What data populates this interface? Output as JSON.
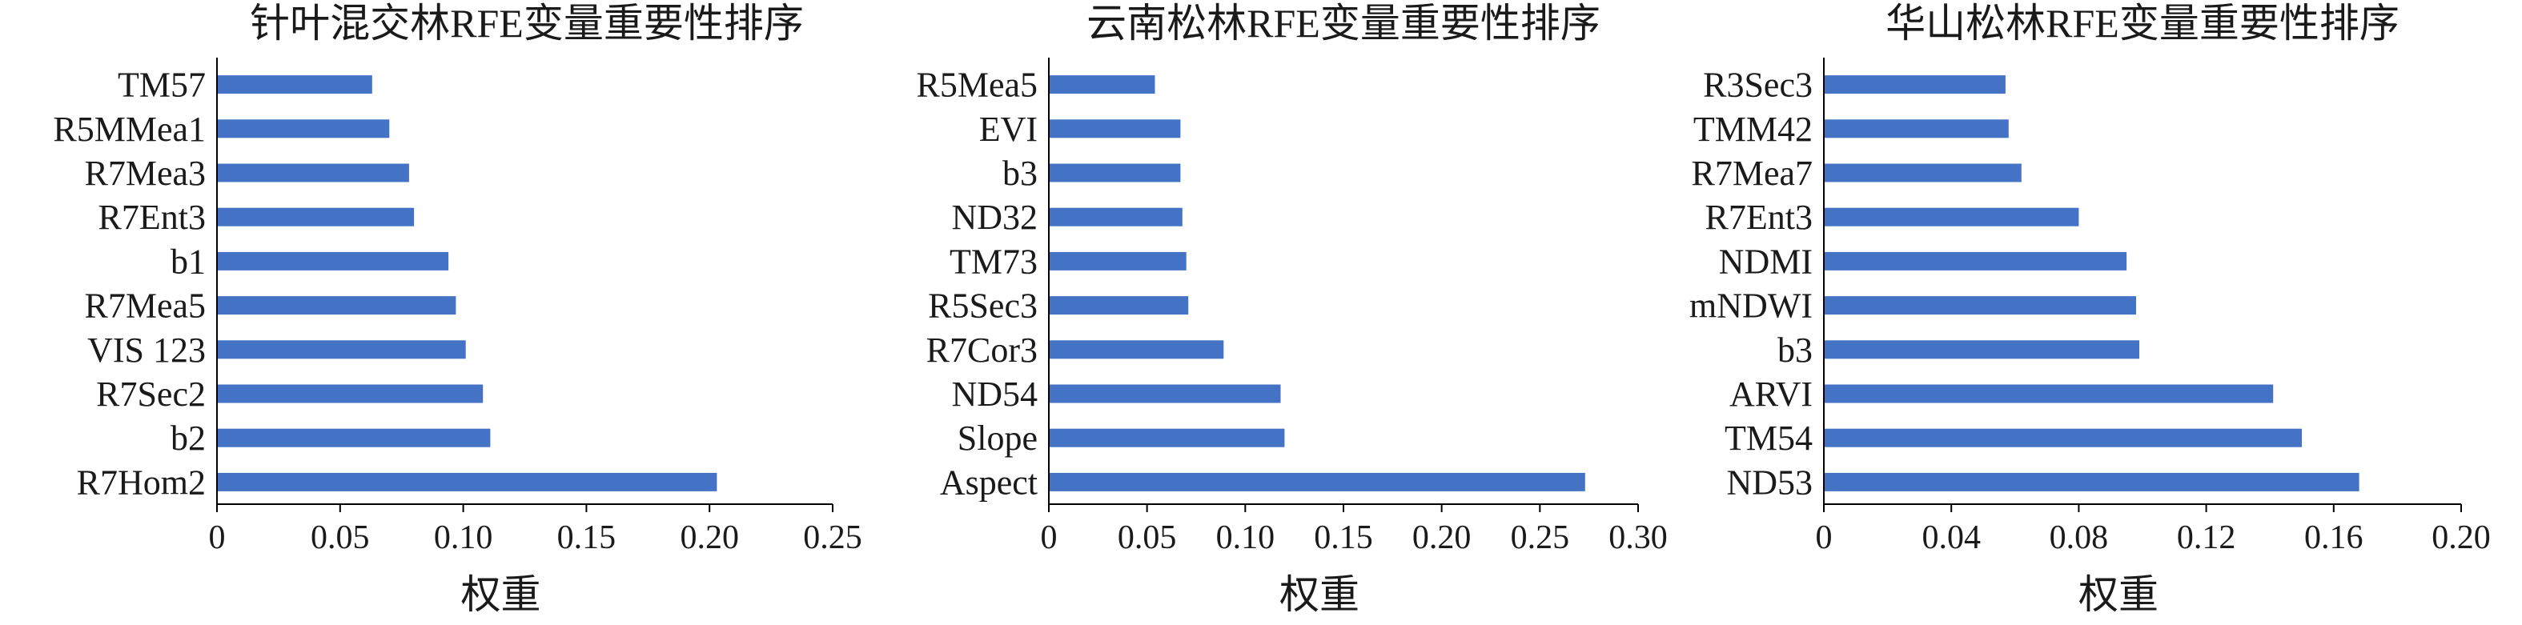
{
  "colors": {
    "bar": "#4472C4",
    "axis": "#000000"
  },
  "chart_data": [
    {
      "type": "bar",
      "orientation": "horizontal",
      "title": "针叶混交林RFE变量重要性排序",
      "xlabel": "权重",
      "ylabel": "",
      "xlim": [
        0,
        0.25
      ],
      "xticks": [
        "0",
        "0.05",
        "0.10",
        "0.15",
        "0.20",
        "0.25"
      ],
      "xtick_values": [
        0,
        0.05,
        0.1,
        0.15,
        0.2,
        0.25
      ],
      "grid": false,
      "categories": [
        "TM57",
        "R5MMea1",
        "R7Mea3",
        "R7Ent3",
        "b1",
        "R7Mea5",
        "VIS 123",
        "R7Sec2",
        "b2",
        "R7Hom2"
      ],
      "values": [
        0.063,
        0.07,
        0.078,
        0.08,
        0.094,
        0.097,
        0.101,
        0.108,
        0.111,
        0.203
      ]
    },
    {
      "type": "bar",
      "orientation": "horizontal",
      "title": "云南松林RFE变量重要性排序",
      "xlabel": "权重",
      "ylabel": "",
      "xlim": [
        0,
        0.3
      ],
      "xticks": [
        "0",
        "0.05",
        "0.10",
        "0.15",
        "0.20",
        "0.25",
        "0.30"
      ],
      "xtick_values": [
        0,
        0.05,
        0.1,
        0.15,
        0.2,
        0.25,
        0.3
      ],
      "grid": false,
      "categories": [
        "R5Mea5",
        "EVI",
        "b3",
        "ND32",
        "TM73",
        "R5Sec3",
        "R7Cor3",
        "ND54",
        "Slope",
        "Aspect"
      ],
      "values": [
        0.054,
        0.067,
        0.067,
        0.068,
        0.07,
        0.071,
        0.089,
        0.118,
        0.12,
        0.273
      ]
    },
    {
      "type": "bar",
      "orientation": "horizontal",
      "title": "华山松林RFE变量重要性排序",
      "xlabel": "权重",
      "ylabel": "",
      "xlim": [
        0,
        0.2
      ],
      "xticks": [
        "0",
        "0.04",
        "0.08",
        "0.12",
        "0.16",
        "0.20"
      ],
      "xtick_values": [
        0,
        0.04,
        0.08,
        0.12,
        0.16,
        0.2
      ],
      "grid": false,
      "categories": [
        "R3Sec3",
        "TMM42",
        "R7Mea7",
        "R7Ent3",
        "NDMI",
        "mNDWI",
        "b3",
        "ARVI",
        "TM54",
        "ND53"
      ],
      "values": [
        0.057,
        0.058,
        0.062,
        0.08,
        0.095,
        0.098,
        0.099,
        0.141,
        0.15,
        0.168
      ]
    }
  ]
}
